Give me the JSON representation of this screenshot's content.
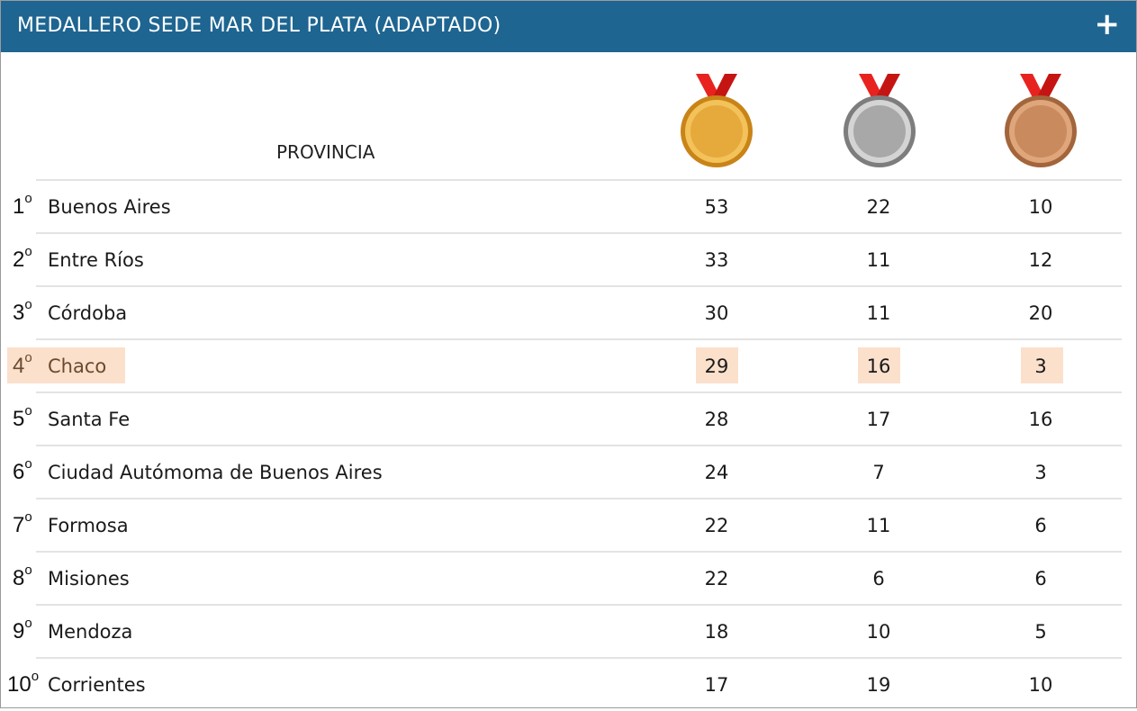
{
  "header": {
    "title": "MEDALLERO SEDE MAR DEL PLATA (ADAPTADO)",
    "plus_icon": "plus-icon"
  },
  "columns": {
    "province": "PROVINCIA",
    "medals": [
      "gold-medal-icon",
      "silver-medal-icon",
      "bronze-medal-icon"
    ]
  },
  "colors": {
    "header_bg": "#1e6591",
    "highlight": "#fbe0cc",
    "gold": "#e6a93b",
    "silver": "#a8a8a8",
    "bronze": "#c98a5e",
    "ribbon": "#e8231f"
  },
  "rows": [
    {
      "rank": "1",
      "ord": "o",
      "name": "Buenos Aires",
      "gold": "53",
      "silver": "22",
      "bronze": "10"
    },
    {
      "rank": "2",
      "ord": "o",
      "name": "Entre Ríos",
      "gold": "33",
      "silver": "11",
      "bronze": "12"
    },
    {
      "rank": "3",
      "ord": "o",
      "name": "Córdoba",
      "gold": "30",
      "silver": "11",
      "bronze": "20"
    },
    {
      "rank": "4",
      "ord": "o",
      "name": "Chaco",
      "gold": "29",
      "silver": "16",
      "bronze": "3"
    },
    {
      "rank": "5",
      "ord": "o",
      "name": "Santa Fe",
      "gold": "28",
      "silver": "17",
      "bronze": "16"
    },
    {
      "rank": "6",
      "ord": "o",
      "name": "Ciudad Autómoma de Buenos Aires",
      "gold": "24",
      "silver": "7",
      "bronze": "3"
    },
    {
      "rank": "7",
      "ord": "o",
      "name": "Formosa",
      "gold": "22",
      "silver": "11",
      "bronze": "6"
    },
    {
      "rank": "8",
      "ord": "o",
      "name": "Misiones",
      "gold": "22",
      "silver": "6",
      "bronze": "6"
    },
    {
      "rank": "9",
      "ord": "o",
      "name": "Mendoza",
      "gold": "18",
      "silver": "10",
      "bronze": "5"
    },
    {
      "rank": "10",
      "ord": "o",
      "name": "Corrientes",
      "gold": "17",
      "silver": "19",
      "bronze": "10"
    }
  ]
}
